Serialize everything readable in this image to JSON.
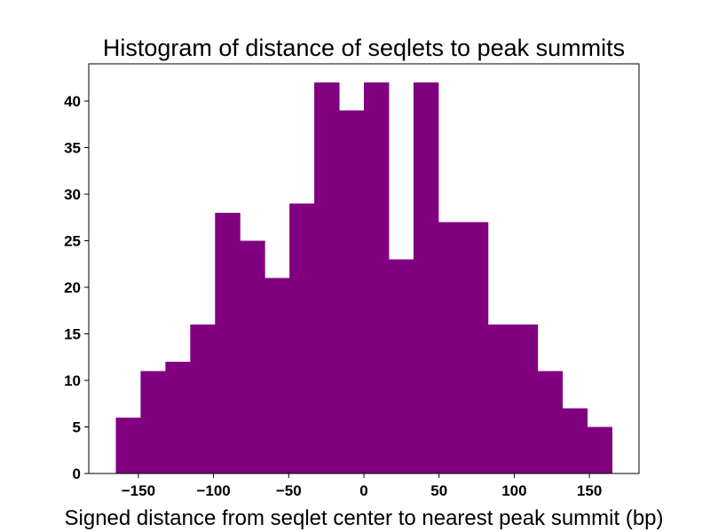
{
  "chart_data": {
    "type": "bar",
    "title": "Histogram of distance of seqlets to peak summits",
    "xlabel": "Signed distance from seqlet center to nearest peak summit (bp)",
    "ylabel": "",
    "xlim": [
      -183,
      183
    ],
    "ylim": [
      0,
      44
    ],
    "x_ticks": [
      -150,
      -100,
      -50,
      0,
      50,
      100,
      150
    ],
    "x_tick_labels": [
      "−150",
      "−100",
      "−50",
      "0",
      "50",
      "100",
      "150"
    ],
    "y_ticks": [
      0,
      5,
      10,
      15,
      20,
      25,
      30,
      35,
      40
    ],
    "y_tick_labels": [
      "0",
      "5",
      "10",
      "15",
      "20",
      "25",
      "30",
      "35",
      "40"
    ],
    "bin_edges": [
      -165,
      -148.5,
      -132,
      -115.5,
      -99,
      -82.5,
      -66,
      -49.5,
      -33,
      -16.5,
      0,
      16.5,
      33,
      49.5,
      66,
      82.5,
      99,
      115.5,
      132,
      148.5,
      165
    ],
    "values": [
      6,
      11,
      12,
      16,
      28,
      25,
      21,
      29,
      42,
      39,
      42,
      23,
      42,
      27,
      27,
      16,
      16,
      11,
      7,
      5
    ],
    "bar_color": "#800080",
    "grid": false,
    "legend": "none"
  }
}
